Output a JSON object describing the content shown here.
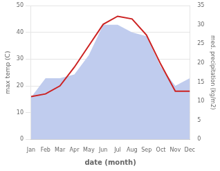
{
  "chart_data": {
    "type": "line",
    "xlabel": "date (month)",
    "ylabel": "max temp (C)",
    "y2label": "med. precipitation (kg/m2)",
    "categories": [
      "Jan",
      "Feb",
      "Mar",
      "Apr",
      "May",
      "Jun",
      "Jul",
      "Aug",
      "Sep",
      "Oct",
      "Nov",
      "Dec"
    ],
    "series": [
      {
        "type": "area",
        "axis": "y2",
        "color": "#c0ccee",
        "values": [
          11,
          16,
          16,
          17,
          22,
          30,
          30,
          28,
          27,
          19,
          14,
          16
        ]
      },
      {
        "type": "line",
        "color": "#cc2222",
        "values": [
          16,
          17,
          20,
          27,
          35,
          43,
          46,
          45,
          39,
          28,
          18,
          18
        ]
      }
    ],
    "ylim": [
      0,
      50
    ],
    "yticks": [
      0,
      10,
      20,
      30,
      40,
      50
    ],
    "y2lim": [
      0,
      35
    ],
    "y2ticks": [
      0,
      5,
      10,
      15,
      20,
      25,
      30,
      35
    ],
    "grid": true
  }
}
